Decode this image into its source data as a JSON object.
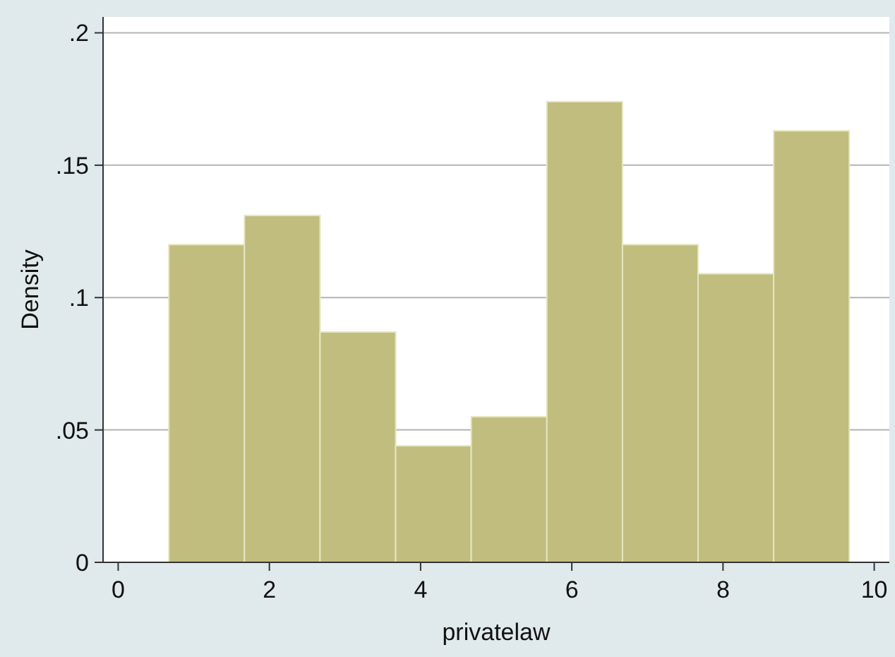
{
  "chart_data": {
    "type": "histogram",
    "xlabel": "privatelaw",
    "ylabel": "Density",
    "bins": [
      0.67,
      1.67,
      2.67,
      3.67,
      4.67,
      5.67,
      6.67,
      7.67,
      8.67,
      9.67
    ],
    "values": [
      0.12,
      0.131,
      0.087,
      0.044,
      0.055,
      0.174,
      0.12,
      0.109,
      0.163
    ],
    "color": "#c0bd7e",
    "xlim": [
      -0.2,
      10.2
    ],
    "xticks": [
      0,
      2,
      4,
      6,
      8,
      10
    ],
    "ylim": [
      0,
      0.206
    ],
    "yticks": [
      {
        "value": 0,
        "label": "0"
      },
      {
        "value": 0.05,
        "label": ".05"
      },
      {
        "value": 0.1,
        "label": ".1"
      },
      {
        "value": 0.15,
        "label": ".15"
      },
      {
        "value": 0.2,
        "label": ".2"
      }
    ],
    "grid": "y"
  }
}
